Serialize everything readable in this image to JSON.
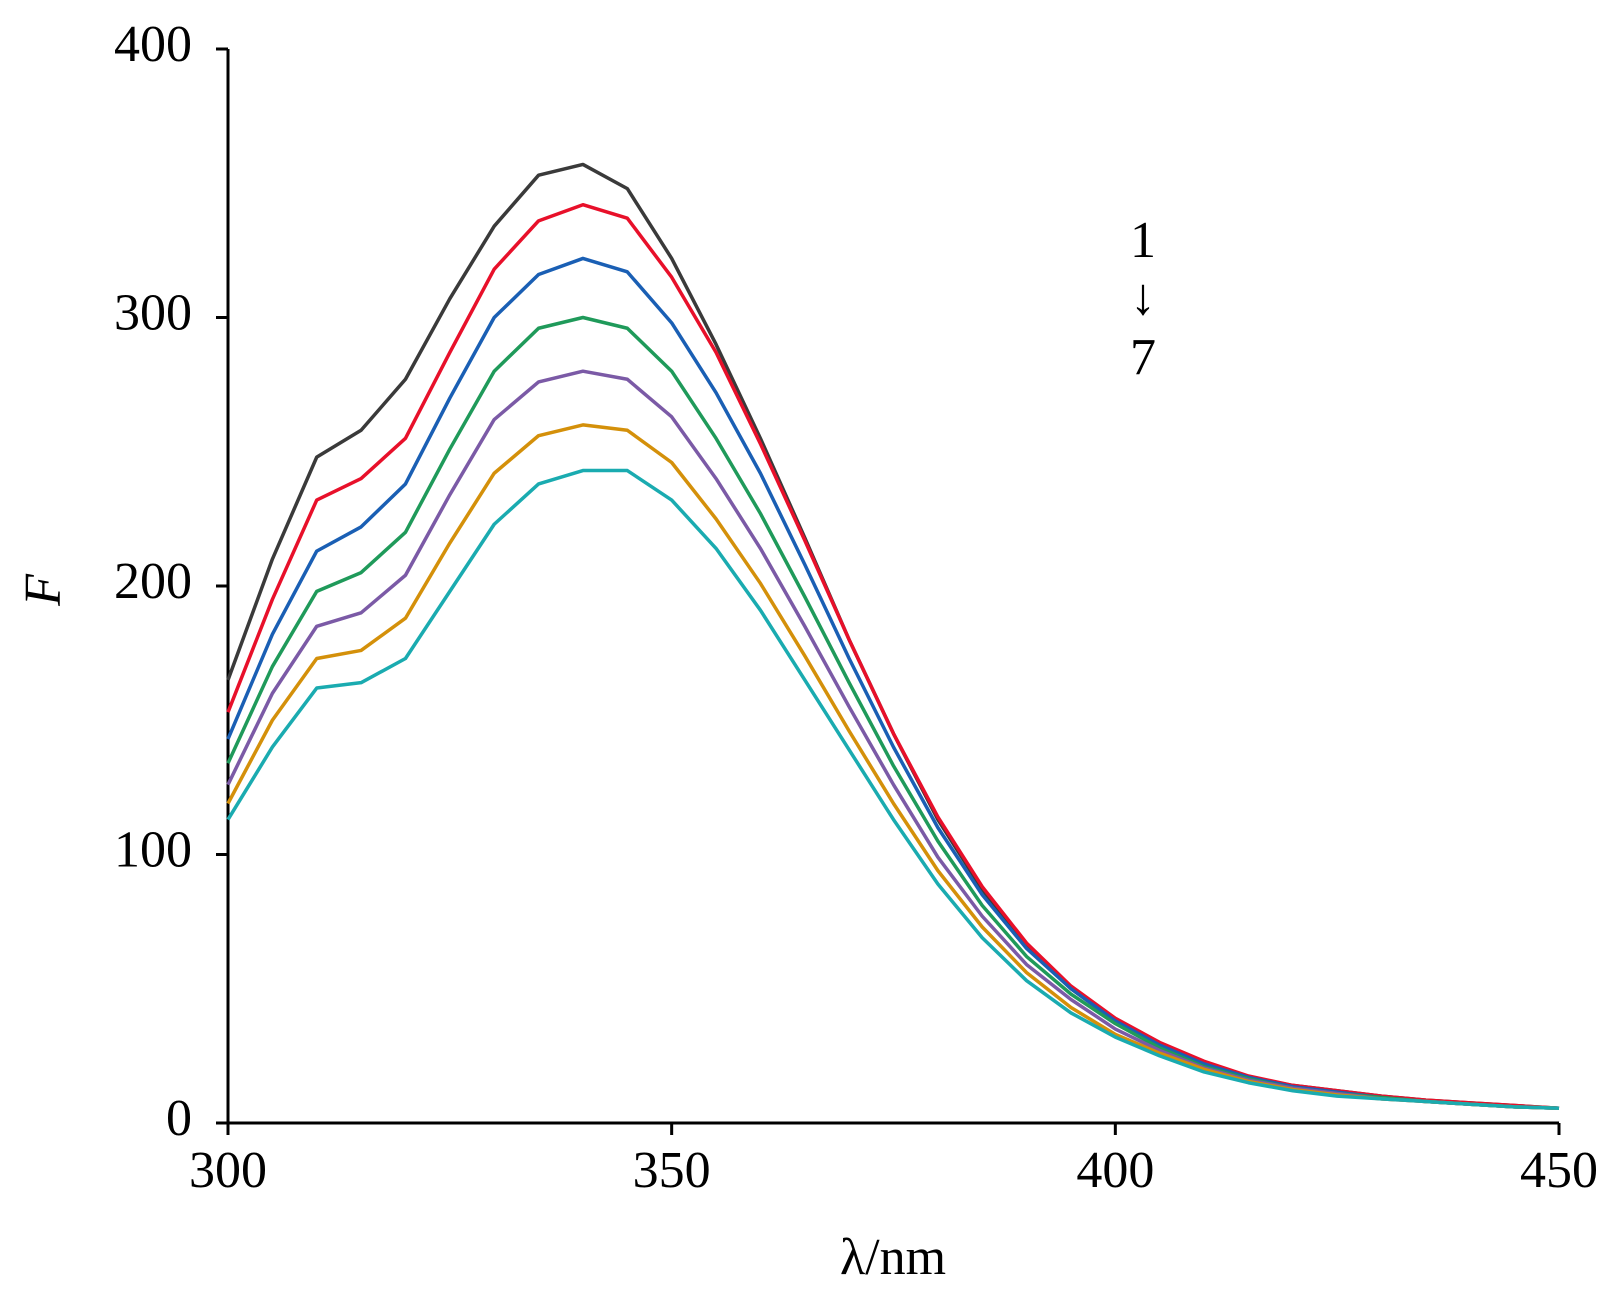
{
  "chart_data": {
    "type": "line",
    "x_label": "λ/nm",
    "y_label": "F",
    "annotations": [
      "1",
      "↓",
      "7"
    ],
    "x": [
      300,
      305,
      310,
      315,
      320,
      325,
      330,
      335,
      340,
      345,
      350,
      355,
      360,
      365,
      370,
      375,
      380,
      385,
      390,
      395,
      400,
      405,
      410,
      415,
      420,
      425,
      430,
      435,
      440,
      445,
      450
    ],
    "series": [
      {
        "color": "#3a3a3a",
        "values": [
          165,
          210,
          248,
          258,
          277,
          307,
          334,
          353,
          357,
          348,
          322,
          290,
          255,
          218,
          180,
          145,
          113,
          87,
          66,
          50,
          38,
          29,
          22,
          17,
          14,
          12,
          10,
          8.5,
          7.5,
          6.5,
          5.5
        ]
      },
      {
        "color": "#e8102a",
        "values": [
          153,
          195,
          232,
          240,
          255,
          287,
          318,
          336,
          342,
          337,
          315,
          287,
          253,
          217,
          180,
          145,
          114,
          88,
          67,
          51,
          39,
          30,
          23,
          17.5,
          14,
          12,
          10,
          8.5,
          7.5,
          6.5,
          5.5
        ]
      },
      {
        "color": "#1a5fb4",
        "values": [
          143,
          182,
          213,
          222,
          238,
          270,
          300,
          316,
          322,
          317,
          298,
          272,
          242,
          208,
          173,
          140,
          110,
          85,
          65,
          50,
          38,
          29,
          22,
          17,
          13.5,
          11.5,
          9.5,
          8,
          7,
          6,
          5.5
        ]
      },
      {
        "color": "#1f9a5a",
        "values": [
          134,
          170,
          198,
          205,
          220,
          251,
          280,
          296,
          300,
          296,
          280,
          255,
          227,
          196,
          164,
          133,
          105,
          81,
          62,
          48,
          37,
          28,
          21,
          16.5,
          13,
          11,
          9.5,
          8,
          7,
          6,
          5.5
        ]
      },
      {
        "color": "#7b5aa6",
        "values": [
          126,
          160,
          185,
          190,
          204,
          234,
          262,
          276,
          280,
          277,
          263,
          240,
          214,
          185,
          155,
          126,
          99,
          77,
          59,
          46,
          35,
          27,
          20.5,
          16,
          13,
          11,
          9,
          8,
          7,
          6,
          5.5
        ]
      },
      {
        "color": "#d4900a",
        "values": [
          119,
          150,
          173,
          176,
          188,
          216,
          242,
          256,
          260,
          258,
          246,
          225,
          201,
          174,
          146,
          119,
          94,
          73,
          56,
          43,
          33,
          26,
          20,
          15.5,
          12.5,
          10.5,
          9,
          8,
          7,
          6,
          5.5
        ]
      },
      {
        "color": "#1aabb0",
        "values": [
          113,
          140,
          162,
          164,
          173,
          198,
          223,
          238,
          243,
          243,
          232,
          214,
          191,
          165,
          139,
          113,
          89,
          69,
          53,
          41,
          32,
          25,
          19,
          15,
          12,
          10,
          9,
          8,
          7,
          6,
          5.5
        ]
      }
    ],
    "xlim": [
      300,
      450
    ],
    "xticks": [
      300,
      350,
      400,
      450
    ],
    "ylim": [
      0,
      400
    ],
    "yticks": [
      0,
      100,
      200,
      300,
      400
    ]
  }
}
